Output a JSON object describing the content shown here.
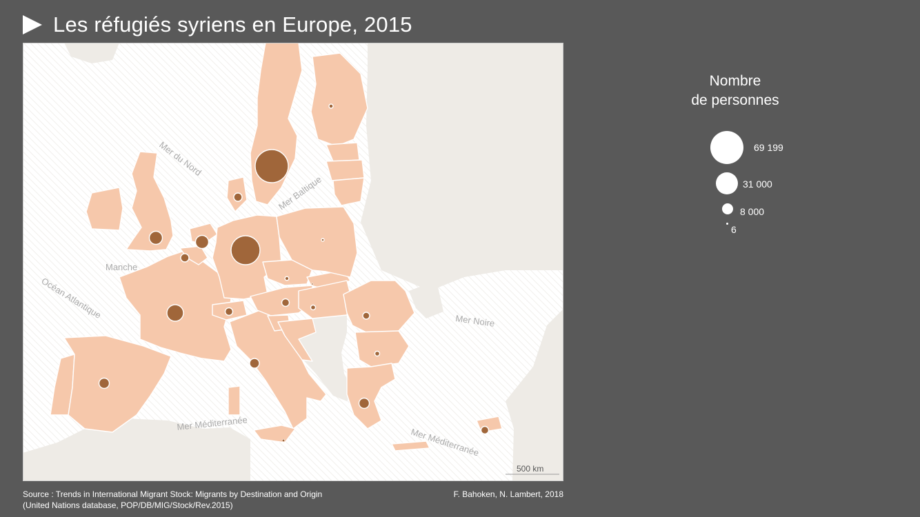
{
  "title": "Les réfugiés syriens en Europe, 2015",
  "map": {
    "sea_labels": {
      "north_sea": "Mer du Nord",
      "baltic": "Mer Baltique",
      "channel": "Manche",
      "atlantic": "Océan Atlantique",
      "black_sea": "Mer Noire",
      "med_west": "Mer Méditerranée",
      "med_east": "Mer Méditerranée"
    },
    "scale_label": "500 km",
    "colors": {
      "land": "#f6c8ab",
      "outside_land": "#eeebe6",
      "sea": "#ffffff",
      "symbol": "#a0663a",
      "border": "#ffffff"
    }
  },
  "legend": {
    "title_line1": "Nombre",
    "title_line2": "de personnes",
    "items": [
      {
        "label": "69 199",
        "value": 69199
      },
      {
        "label": "31 000",
        "value": 31000
      },
      {
        "label": "8 000",
        "value": 8000
      },
      {
        "label": "6",
        "value": 6
      }
    ]
  },
  "source_line1": "Source : Trends in International Migrant Stock: Migrants by Destination and Origin",
  "source_line2": "(United Nations database, POP/DB/MIG/Stock/Rev.2015)",
  "credit": "F. Bahoken, N. Lambert, 2018"
}
